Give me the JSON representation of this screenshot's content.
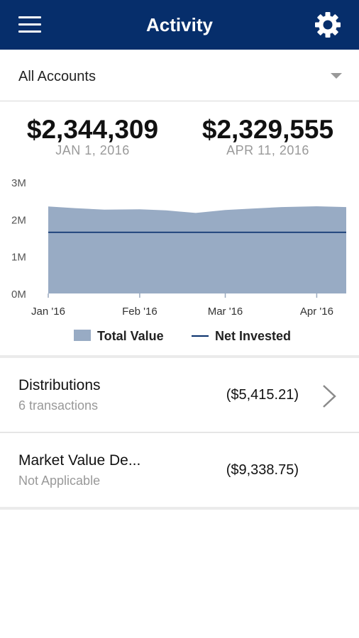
{
  "header": {
    "title": "Activity",
    "menu_icon": "hamburger-icon",
    "settings_icon": "gear-icon",
    "bg_color": "#062e6b"
  },
  "account_selector": {
    "selected": "All Accounts"
  },
  "summary": {
    "start": {
      "value": "$2,344,309",
      "date": "JAN 1, 2016"
    },
    "end": {
      "value": "$2,329,555",
      "date": "APR 11, 2016"
    }
  },
  "chart_data": {
    "type": "area",
    "y_ticks": [
      "0M",
      "1M",
      "2M",
      "3M"
    ],
    "x_ticks": [
      "Jan '16",
      "Feb '16",
      "Mar '16",
      "Apr '16"
    ],
    "ylim": [
      0,
      3000000
    ],
    "series": [
      {
        "name": "Total Value",
        "type": "area",
        "color": "#98abc4",
        "x": [
          "2016-01-01",
          "2016-01-10",
          "2016-01-20",
          "2016-02-01",
          "2016-02-10",
          "2016-02-20",
          "2016-03-01",
          "2016-03-10",
          "2016-03-20",
          "2016-04-01",
          "2016-04-11"
        ],
        "values": [
          2344309,
          2300000,
          2260000,
          2270000,
          2240000,
          2170000,
          2250000,
          2290000,
          2330000,
          2350000,
          2329555
        ]
      },
      {
        "name": "Net Invested",
        "type": "line",
        "color": "#062e6b",
        "x": [
          "2016-01-01",
          "2016-04-11"
        ],
        "values": [
          1650000,
          1650000
        ]
      }
    ],
    "legend": [
      "Total Value",
      "Net Invested"
    ]
  },
  "transactions": [
    {
      "name": "Distributions",
      "subtitle": "6 transactions",
      "amount": "($5,415.21)",
      "has_chevron": true
    },
    {
      "name": "Market Value De...",
      "subtitle": "Not Applicable",
      "amount": "($9,338.75)",
      "has_chevron": false
    }
  ]
}
